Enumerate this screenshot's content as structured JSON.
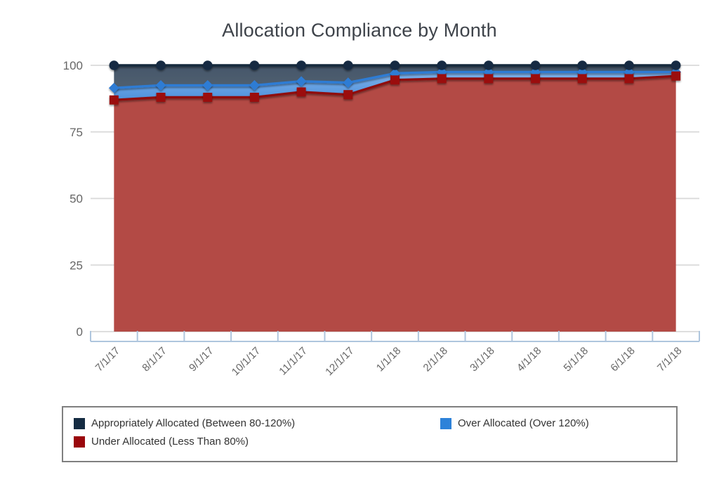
{
  "title": "Allocation Compliance by Month",
  "chart_data": {
    "type": "area",
    "stacked": true,
    "title": "Allocation Compliance by Month",
    "x": [
      "7/1/17",
      "8/1/17",
      "9/1/17",
      "10/1/17",
      "11/1/17",
      "12/1/17",
      "1/1/18",
      "2/1/18",
      "3/1/18",
      "4/1/18",
      "5/1/18",
      "6/1/18",
      "7/1/18"
    ],
    "series": [
      {
        "name": "Under Allocated (Less Than 80%)",
        "marker": "square",
        "line_color": "#8f1011",
        "marker_color": "#9b0d0b",
        "fill": "#b34a45",
        "values": [
          87,
          88,
          88,
          88,
          90,
          89,
          94.5,
          95,
          95,
          95,
          95,
          95,
          96
        ]
      },
      {
        "name": "Over Allocated (Over 120%)",
        "marker": "diamond",
        "line_color": "#2e7cd4",
        "marker_color": "#2e7cd4",
        "fill_top": "#7fb1e9",
        "fill_bottom": "#4e92dc",
        "values": [
          4.5,
          4.5,
          4.5,
          4.5,
          4,
          4.5,
          2.5,
          2.5,
          2.5,
          2.5,
          2.5,
          2.5,
          1.5
        ]
      },
      {
        "name": "Appropriately Allocated (Between 80-120%)",
        "marker": "circle",
        "line_color": "#122a3e",
        "marker_color": "#152c42",
        "fill_top": "#45566b",
        "fill_bottom": "#50606f",
        "values": [
          8.5,
          7.5,
          7.5,
          7.5,
          6,
          6.5,
          3,
          2.5,
          2.5,
          2.5,
          2.5,
          2.5,
          2.5
        ]
      }
    ],
    "ylim": [
      0,
      100
    ],
    "yticks": [
      0,
      25,
      50,
      75,
      100
    ],
    "grid": true,
    "legend_position": "bottom",
    "style": {
      "grid_color": "#d9d9d9",
      "axis_color": "#afc6de",
      "tick_label_color": "#666666",
      "title_color": "#3e434a",
      "legend_border_color": "#7f7f7f",
      "legend_text_color": "#333333",
      "background": "#ffffff"
    }
  },
  "legend": {
    "items": [
      {
        "label": "Appropriately Allocated (Between 80-120%)",
        "color": "#152c42"
      },
      {
        "label": "Over Allocated (Over 120%)",
        "color": "#2e82d9"
      },
      {
        "label": "Under Allocated (Less Than 80%)",
        "color": "#9a070c"
      }
    ]
  }
}
